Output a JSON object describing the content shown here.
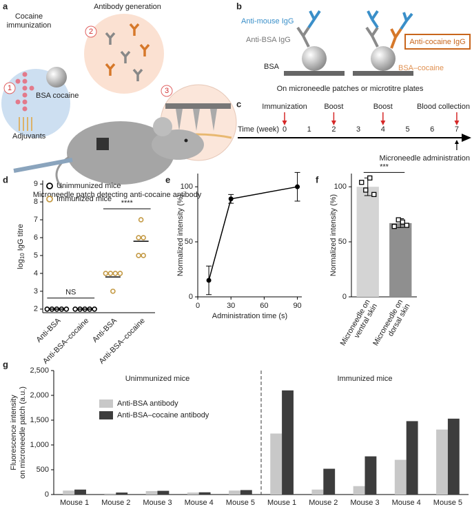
{
  "panel_a": {
    "letter": "a",
    "immunization": [
      "Cocaine",
      "immunization"
    ],
    "step1": "1",
    "antibody": "Antibody generation",
    "step2": "2",
    "step3": "3",
    "bsa_cocaine": "BSA cocaine",
    "adjuvants": "Adjuvants",
    "caption": "Microneedle patch detecting anti-cocaine antibody"
  },
  "panel_b": {
    "letter": "b",
    "anti_mouse": "Anti-mouse IgG",
    "anti_bsa": "Anti-BSA IgG",
    "bsa": "BSA",
    "anti_cocaine": "Anti-cocaine IgG",
    "bsa_cocaine": "BSA–cocaine",
    "caption": "On microneedle patches or microtitre plates"
  },
  "panel_c": {
    "letter": "c",
    "axis_label": "Time (week)",
    "ticks": [
      0,
      1,
      2,
      3,
      4,
      5,
      6,
      7
    ],
    "events": [
      {
        "week": 0,
        "label": "Immunization"
      },
      {
        "week": 2,
        "label": "Boost"
      },
      {
        "week": 4,
        "label": "Boost"
      },
      {
        "week": 7,
        "label": "Blood collection"
      }
    ],
    "administration": {
      "week": 7,
      "label": "Microneedle administration"
    }
  },
  "chart_data": [
    {
      "type": "strip",
      "letter": "d",
      "ylabel": "log",
      "ylabel_sub": "10",
      "ylabel_rest": "IgG titre",
      "categories": [
        "Anti-BSA",
        "Anti-BSA–cocaine",
        "Anti-BSA",
        "Anti-BSA–cocaine"
      ],
      "series": [
        {
          "name": "Unimmunized mice",
          "color": "#000000",
          "values": [
            [
              2,
              2,
              2,
              2,
              2
            ],
            [
              2,
              2,
              2,
              2,
              2
            ],
            null,
            null
          ],
          "means": [
            2,
            2,
            null,
            null
          ]
        },
        {
          "name": "Immunized mice",
          "color": "#c49a45",
          "values": [
            null,
            null,
            [
              4,
              4,
              4,
              4,
              3
            ],
            [
              7,
              6,
              6,
              5,
              5
            ]
          ],
          "means": [
            null,
            null,
            3.8,
            5.8
          ]
        }
      ],
      "ylim": [
        1.8,
        9.2
      ],
      "yticks": [
        2,
        3,
        4,
        5,
        6,
        7,
        8,
        9
      ],
      "legend": "upper left",
      "annotations": [
        {
          "text": "NS",
          "from": 0,
          "to": 1
        },
        {
          "text": "****",
          "from": 2,
          "to": 3
        }
      ]
    },
    {
      "type": "line",
      "letter": "e",
      "x": [
        10,
        30,
        90
      ],
      "values": [
        15,
        89,
        100
      ],
      "errors": [
        13,
        4,
        13
      ],
      "color": "#000000",
      "xlim": [
        0,
        94
      ],
      "xticks": [
        0,
        30,
        60,
        90
      ],
      "ylim": [
        0,
        112
      ],
      "yticks": [
        0,
        50,
        100
      ],
      "xlabel": "Administration time (s)",
      "ylabel": "Normalized intensity (%)"
    },
    {
      "type": "bar",
      "letter": "f",
      "categories": [
        [
          "Microneedle on",
          "ventral skin"
        ],
        [
          "Microneedle on",
          "dorsal skin"
        ]
      ],
      "values": [
        100,
        67
      ],
      "errors": [
        8,
        4
      ],
      "points": [
        [
          104,
          97,
          108,
          93
        ],
        [
          64,
          70,
          68,
          65
        ]
      ],
      "colors": [
        "#d4d4d4",
        "#8f8f8f"
      ],
      "ylim": [
        0,
        112
      ],
      "yticks": [
        0,
        50,
        100
      ],
      "ylabel": "Normalized intensity (%)",
      "annotations": [
        {
          "text": "***",
          "from": 0,
          "to": 1
        }
      ]
    },
    {
      "type": "bar",
      "letter": "g",
      "categories": [
        "Mouse 1",
        "Mouse 2",
        "Mouse 3",
        "Mouse 4",
        "Mouse 5",
        "Mouse 1",
        "Mouse 2",
        "Mouse 3",
        "Mouse 4",
        "Mouse 5"
      ],
      "groups": [
        {
          "label": "Unimmunized mice",
          "start": 0,
          "end": 4
        },
        {
          "label": "Immunized mice",
          "start": 5,
          "end": 9
        }
      ],
      "series": [
        {
          "name": "Anti-BSA antibody",
          "color": "#c8c8c8",
          "values": [
            80,
            20,
            70,
            40,
            80,
            1230,
            100,
            170,
            700,
            1310
          ]
        },
        {
          "name": "Anti-BSA–cocaine antibody",
          "color": "#3d3d3d",
          "values": [
            100,
            40,
            75,
            45,
            90,
            2100,
            520,
            770,
            1480,
            1530
          ]
        }
      ],
      "ylim": [
        0,
        2500
      ],
      "yticks": [
        0,
        500,
        {
          "value": 1000,
          "label": "1,000"
        },
        {
          "value": 1500,
          "label": "1,500"
        },
        {
          "value": 2000,
          "label": "2,000"
        },
        {
          "value": 2500,
          "label": "2,500"
        }
      ],
      "ylabel": [
        "Fluorescence intensity",
        "on microneedle patch (a.u.)"
      ],
      "legend": "upper left"
    }
  ]
}
